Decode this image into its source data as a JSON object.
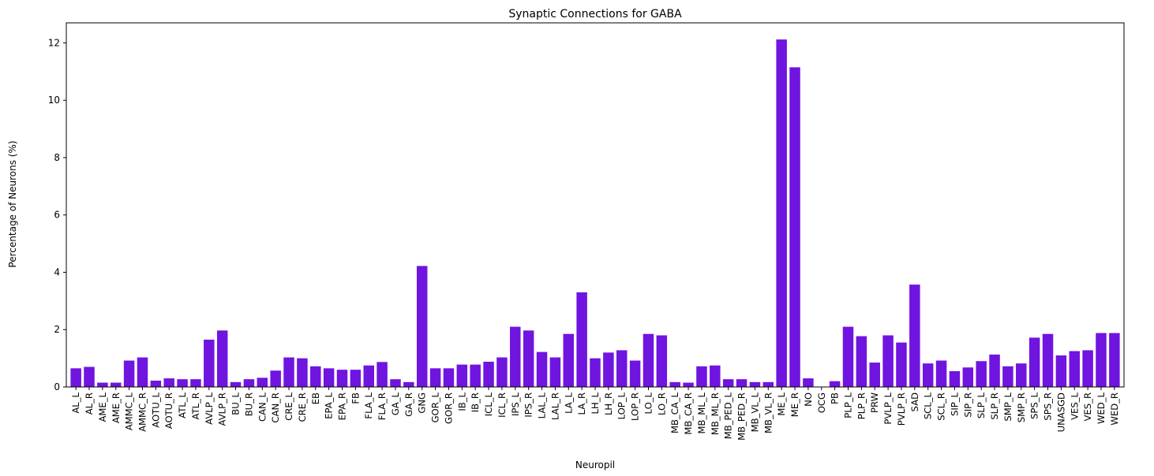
{
  "chart_data": {
    "type": "bar",
    "title": "Synaptic Connections for GABA",
    "xlabel": "Neuropil",
    "ylabel": "Percentage of Neurons (%)",
    "ylim": [
      0,
      12.7
    ],
    "yticks": [
      0,
      2,
      4,
      6,
      8,
      10,
      12
    ],
    "bar_color": "#7014e0",
    "grid": false,
    "categories": [
      "AL_L",
      "AL_R",
      "AME_L",
      "AME_R",
      "AMMC_L",
      "AMMC_R",
      "AOTU_L",
      "AOTU_R",
      "ATL_L",
      "ATL_R",
      "AVLP_L",
      "AVLP_R",
      "BU_L",
      "BU_R",
      "CAN_L",
      "CAN_R",
      "CRE_L",
      "CRE_R",
      "EB",
      "EPA_L",
      "EPA_R",
      "FB",
      "FLA_L",
      "FLA_R",
      "GA_L",
      "GA_R",
      "GNG",
      "GOR_L",
      "GOR_R",
      "IB_L",
      "IB_R",
      "ICL_L",
      "ICL_R",
      "IPS_L",
      "IPS_R",
      "LAL_L",
      "LAL_R",
      "LA_L",
      "LA_R",
      "LH_L",
      "LH_R",
      "LOP_L",
      "LOP_R",
      "LO_L",
      "LO_R",
      "MB_CA_L",
      "MB_CA_R",
      "MB_ML_L",
      "MB_ML_R",
      "MB_PED_L",
      "MB_PED_R",
      "MB_VL_L",
      "MB_VL_R",
      "ME_L",
      "ME_R",
      "NO",
      "OCG",
      "PB",
      "PLP_L",
      "PLP_R",
      "PRW",
      "PVLP_L",
      "PVLP_R",
      "SAD",
      "SCL_L",
      "SCL_R",
      "SIP_L",
      "SIP_R",
      "SLP_L",
      "SLP_R",
      "SMP_L",
      "SMP_R",
      "SPS_L",
      "SPS_R",
      "UNASGD",
      "VES_L",
      "VES_R",
      "WED_L",
      "WED_R"
    ],
    "values": [
      0.65,
      0.7,
      0.15,
      0.15,
      0.92,
      1.03,
      0.22,
      0.3,
      0.27,
      0.27,
      1.65,
      1.97,
      0.17,
      0.27,
      0.32,
      0.57,
      1.03,
      1.0,
      0.72,
      0.65,
      0.6,
      0.6,
      0.75,
      0.87,
      0.27,
      0.17,
      4.22,
      0.65,
      0.65,
      0.78,
      0.78,
      0.88,
      1.03,
      2.1,
      1.97,
      1.22,
      1.03,
      1.85,
      3.3,
      1.0,
      1.2,
      1.28,
      0.92,
      1.85,
      1.8,
      0.17,
      0.15,
      0.72,
      0.75,
      0.27,
      0.27,
      0.17,
      0.17,
      12.12,
      11.15,
      0.3,
      0.0,
      0.2,
      2.1,
      1.77,
      0.85,
      1.8,
      1.55,
      3.57,
      0.82,
      0.92,
      0.55,
      0.68,
      0.9,
      1.13,
      0.72,
      0.82,
      1.72,
      1.85,
      1.1,
      1.25,
      1.28,
      1.88,
      1.88
    ]
  }
}
